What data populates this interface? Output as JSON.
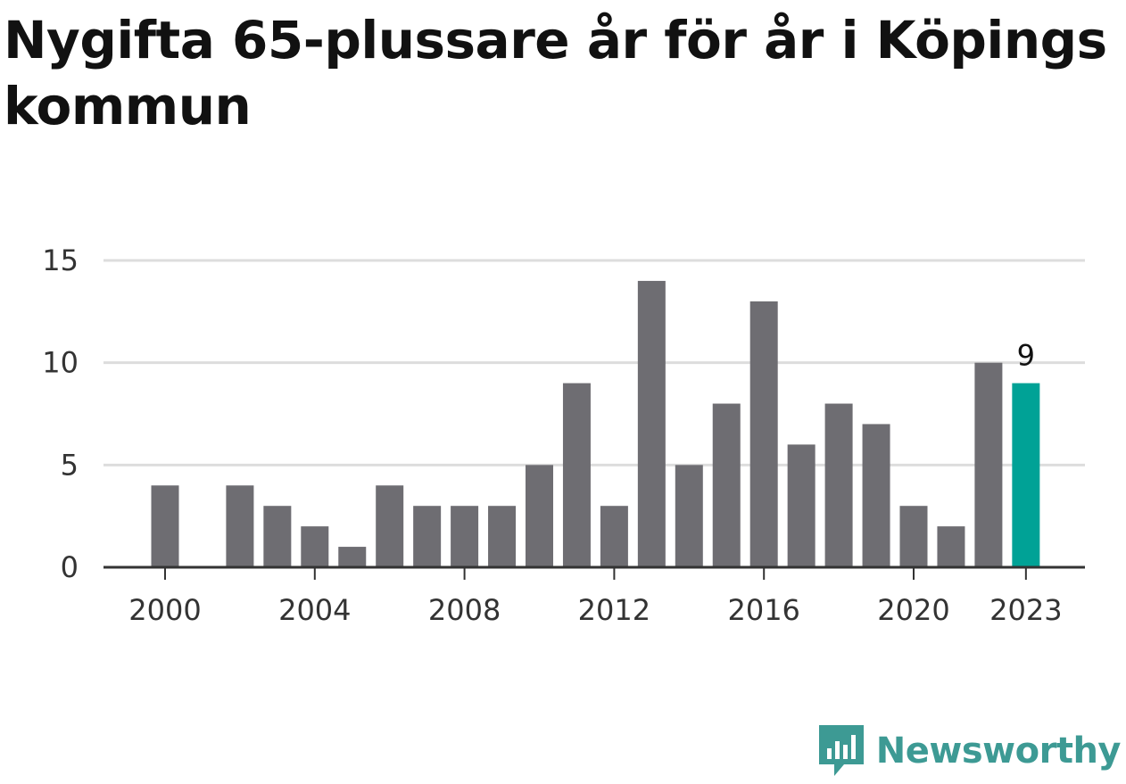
{
  "title": "Nygifta 65-plussare år för år i Köpings kommun",
  "brand": {
    "name": "Newsworthy",
    "icon": "bar-chart-speech-bubble-icon",
    "color": "#3d9a94"
  },
  "colors": {
    "bar": "#6e6d72",
    "highlight": "#00a296",
    "grid": "#dddddd",
    "axis": "#333333"
  },
  "chart_data": {
    "type": "bar",
    "title": "Nygifta 65-plussare år för år i Köpings kommun",
    "xlabel": "",
    "ylabel": "",
    "categories": [
      2000,
      2001,
      2002,
      2003,
      2004,
      2005,
      2006,
      2007,
      2008,
      2009,
      2010,
      2011,
      2012,
      2013,
      2014,
      2015,
      2016,
      2017,
      2018,
      2019,
      2020,
      2021,
      2022,
      2023
    ],
    "values": [
      4,
      0,
      4,
      3,
      2,
      1,
      4,
      3,
      3,
      3,
      5,
      9,
      3,
      14,
      5,
      8,
      13,
      6,
      8,
      7,
      3,
      2,
      10,
      9
    ],
    "ylim": [
      0,
      15
    ],
    "yticks": [
      0,
      5,
      10,
      15
    ],
    "xtick_labels": [
      "2000",
      "2004",
      "2008",
      "2012",
      "2016",
      "2020",
      "2023"
    ],
    "highlight_category": 2023,
    "highlight_label": "9",
    "grid": true,
    "legend": "none"
  }
}
